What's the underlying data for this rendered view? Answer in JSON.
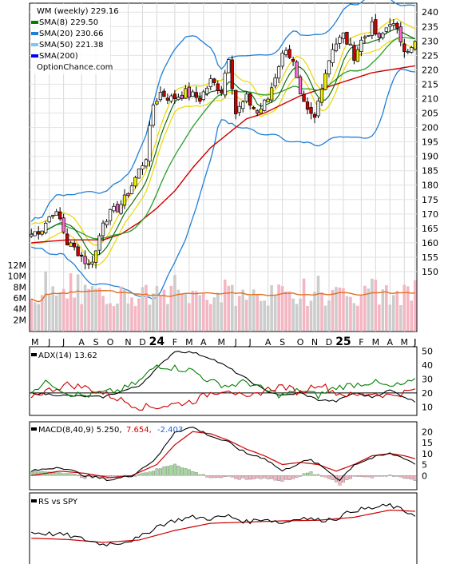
{
  "chart_data": [
    {
      "type": "candlestick",
      "panel": "price",
      "legend": [
        {
          "label": "WM (weekly) 229.16",
          "color": "#000000"
        },
        {
          "label": "SMA(8) 229.50",
          "color": "#008000"
        },
        {
          "label": "SMA(20) 230.66",
          "color": "#1e7fd8"
        },
        {
          "label": "SMA(50) 221.38",
          "color": "#7ec4ff"
        },
        {
          "label": "SMA(200)",
          "color": "#0000ff"
        }
      ],
      "watermark": "OptionChance.com",
      "ylim": [
        150,
        242
      ],
      "y_ticks": [
        150,
        155,
        160,
        165,
        170,
        175,
        180,
        185,
        190,
        195,
        200,
        205,
        210,
        215,
        220,
        225,
        230,
        235,
        240
      ],
      "close_anchors": [
        [
          0,
          163
        ],
        [
          3,
          165
        ],
        [
          6,
          171
        ],
        [
          8,
          168
        ],
        [
          10,
          160
        ],
        [
          13,
          157
        ],
        [
          16,
          152
        ],
        [
          18,
          157
        ],
        [
          20,
          168
        ],
        [
          24,
          172
        ],
        [
          26,
          175
        ],
        [
          28,
          180
        ],
        [
          30,
          185
        ],
        [
          32,
          190
        ],
        [
          34,
          208
        ],
        [
          36,
          212
        ],
        [
          39,
          210
        ],
        [
          43,
          212
        ],
        [
          47,
          210
        ],
        [
          50,
          216
        ],
        [
          53,
          213
        ],
        [
          55,
          225
        ],
        [
          57,
          205
        ],
        [
          60,
          210
        ],
        [
          63,
          205
        ],
        [
          66,
          210
        ],
        [
          69,
          222
        ],
        [
          71,
          228
        ],
        [
          73,
          222
        ],
        [
          75,
          210
        ],
        [
          77,
          205
        ],
        [
          79,
          203
        ],
        [
          81,
          215
        ],
        [
          84,
          228
        ],
        [
          87,
          232
        ],
        [
          90,
          225
        ],
        [
          92,
          230
        ],
        [
          95,
          235
        ],
        [
          97,
          230
        ],
        [
          100,
          237
        ],
        [
          102,
          233
        ],
        [
          104,
          228
        ],
        [
          106,
          227
        ],
        [
          107,
          229.16
        ]
      ],
      "sma50_anchors": [
        [
          0,
          160
        ],
        [
          10,
          161
        ],
        [
          20,
          161
        ],
        [
          25,
          163
        ],
        [
          30,
          167
        ],
        [
          35,
          172
        ],
        [
          40,
          178
        ],
        [
          45,
          186
        ],
        [
          50,
          193
        ],
        [
          55,
          198
        ],
        [
          60,
          203
        ],
        [
          65,
          205
        ],
        [
          70,
          208
        ],
        [
          75,
          211
        ],
        [
          80,
          213
        ],
        [
          85,
          215
        ],
        [
          90,
          217
        ],
        [
          95,
          219
        ],
        [
          100,
          220
        ],
        [
          107,
          221.38
        ]
      ],
      "volume": {
        "y_ticks": [
          "2M",
          "4M",
          "6M",
          "8M",
          "10M",
          "12M"
        ],
        "max": 12
      },
      "x_labels": [
        {
          "label": "M",
          "week": 1
        },
        {
          "label": "J",
          "week": 5
        },
        {
          "label": "J",
          "week": 9
        },
        {
          "label": "A",
          "week": 14
        },
        {
          "label": "S",
          "week": 18
        },
        {
          "label": "O",
          "week": 22
        },
        {
          "label": "N",
          "week": 27
        },
        {
          "label": "D",
          "week": 31
        },
        {
          "label": "24",
          "week": 35
        },
        {
          "label": "F",
          "week": 40
        },
        {
          "label": "M",
          "week": 44
        },
        {
          "label": "A",
          "week": 48
        },
        {
          "label": "M",
          "week": 53
        },
        {
          "label": "J",
          "week": 57
        },
        {
          "label": "J",
          "week": 61
        },
        {
          "label": "A",
          "week": 66
        },
        {
          "label": "S",
          "week": 70
        },
        {
          "label": "O",
          "week": 75
        },
        {
          "label": "N",
          "week": 79
        },
        {
          "label": "D",
          "week": 83
        },
        {
          "label": "25",
          "week": 87
        },
        {
          "label": "F",
          "week": 92
        },
        {
          "label": "M",
          "week": 96
        },
        {
          "label": "A",
          "week": 100
        },
        {
          "label": "M",
          "week": 104
        },
        {
          "label": "J",
          "week": 108
        },
        {
          "label": "J",
          "week": 112
        }
      ]
    },
    {
      "type": "line",
      "panel": "adx",
      "label": "ADX(14) 13.62",
      "ylim": [
        5,
        52
      ],
      "y_ticks": [
        10,
        20,
        30,
        40,
        50
      ],
      "ref_line": 20,
      "series": [
        {
          "color": "#000000",
          "values": [
            [
              0,
              20
            ],
            [
              10,
              18
            ],
            [
              20,
              17
            ],
            [
              30,
              25
            ],
            [
              36,
              40
            ],
            [
              40,
              50
            ],
            [
              45,
              49
            ],
            [
              50,
              45
            ],
            [
              55,
              38
            ],
            [
              60,
              30
            ],
            [
              65,
              22
            ],
            [
              70,
              18
            ],
            [
              75,
              20
            ],
            [
              80,
              15
            ],
            [
              85,
              14
            ],
            [
              90,
              20
            ],
            [
              95,
              17
            ],
            [
              100,
              22
            ],
            [
              107,
              13.62
            ]
          ]
        },
        {
          "color": "#008000",
          "values": [
            [
              0,
              22
            ],
            [
              5,
              28
            ],
            [
              10,
              20
            ],
            [
              15,
              18
            ],
            [
              20,
              20
            ],
            [
              25,
              22
            ],
            [
              30,
              28
            ],
            [
              35,
              40
            ],
            [
              40,
              38
            ],
            [
              45,
              36
            ],
            [
              50,
              28
            ],
            [
              55,
              25
            ],
            [
              60,
              28
            ],
            [
              65,
              22
            ],
            [
              70,
              18
            ],
            [
              75,
              22
            ],
            [
              80,
              18
            ],
            [
              85,
              24
            ],
            [
              90,
              26
            ],
            [
              95,
              28
            ],
            [
              100,
              24
            ],
            [
              107,
              28
            ]
          ]
        },
        {
          "color": "#cc0000",
          "values": [
            [
              0,
              18
            ],
            [
              5,
              22
            ],
            [
              10,
              26
            ],
            [
              15,
              24
            ],
            [
              20,
              20
            ],
            [
              25,
              15
            ],
            [
              30,
              10
            ],
            [
              35,
              10
            ],
            [
              40,
              12
            ],
            [
              45,
              14
            ],
            [
              50,
              20
            ],
            [
              55,
              23
            ],
            [
              60,
              15
            ],
            [
              65,
              22
            ],
            [
              70,
              25
            ],
            [
              75,
              20
            ],
            [
              80,
              27
            ],
            [
              85,
              20
            ],
            [
              90,
              18
            ],
            [
              95,
              20
            ],
            [
              100,
              18
            ],
            [
              107,
              22
            ]
          ]
        }
      ]
    },
    {
      "type": "bar+line",
      "panel": "macd",
      "label": "MACD(8,40,9) 5.250,",
      "value_signal": "7.654,",
      "value_hist": "-2.403",
      "signal_color": "#cc0000",
      "hist_color": "#1e5fcc",
      "ylim": [
        -5,
        23
      ],
      "y_ticks": [
        0,
        5,
        10,
        15,
        20
      ],
      "macd": [
        [
          0,
          2
        ],
        [
          8,
          4
        ],
        [
          15,
          0
        ],
        [
          22,
          -2
        ],
        [
          28,
          0
        ],
        [
          35,
          8
        ],
        [
          40,
          20
        ],
        [
          45,
          22
        ],
        [
          50,
          18
        ],
        [
          55,
          15
        ],
        [
          60,
          10
        ],
        [
          65,
          8
        ],
        [
          70,
          2
        ],
        [
          75,
          6
        ],
        [
          78,
          7
        ],
        [
          82,
          3
        ],
        [
          86,
          -2
        ],
        [
          90,
          5
        ],
        [
          95,
          8
        ],
        [
          100,
          10
        ],
        [
          104,
          8
        ],
        [
          107,
          5.25
        ]
      ],
      "signal": [
        [
          0,
          0
        ],
        [
          8,
          2
        ],
        [
          15,
          1
        ],
        [
          22,
          -1
        ],
        [
          28,
          0
        ],
        [
          35,
          5
        ],
        [
          40,
          14
        ],
        [
          45,
          20
        ],
        [
          50,
          19
        ],
        [
          55,
          16
        ],
        [
          60,
          12
        ],
        [
          65,
          9
        ],
        [
          70,
          5
        ],
        [
          75,
          6
        ],
        [
          80,
          5
        ],
        [
          85,
          2
        ],
        [
          90,
          5
        ],
        [
          95,
          9
        ],
        [
          100,
          10
        ],
        [
          104,
          9
        ],
        [
          107,
          7.654
        ]
      ]
    },
    {
      "type": "line",
      "panel": "rs",
      "label": "RS vs SPY",
      "rs": [
        [
          0,
          0.45
        ],
        [
          10,
          0.4
        ],
        [
          20,
          0.25
        ],
        [
          25,
          0.28
        ],
        [
          30,
          0.35
        ],
        [
          35,
          0.55
        ],
        [
          40,
          0.65
        ],
        [
          45,
          0.7
        ],
        [
          50,
          0.68
        ],
        [
          55,
          0.72
        ],
        [
          60,
          0.62
        ],
        [
          65,
          0.68
        ],
        [
          70,
          0.6
        ],
        [
          75,
          0.7
        ],
        [
          80,
          0.65
        ],
        [
          85,
          0.68
        ],
        [
          90,
          0.82
        ],
        [
          95,
          0.85
        ],
        [
          100,
          0.9
        ],
        [
          104,
          0.8
        ],
        [
          107,
          0.75
        ]
      ],
      "rs_ma": [
        [
          0,
          0.35
        ],
        [
          10,
          0.33
        ],
        [
          20,
          0.28
        ],
        [
          30,
          0.32
        ],
        [
          40,
          0.48
        ],
        [
          50,
          0.6
        ],
        [
          60,
          0.62
        ],
        [
          70,
          0.64
        ],
        [
          80,
          0.65
        ],
        [
          90,
          0.7
        ],
        [
          100,
          0.82
        ],
        [
          107,
          0.8
        ]
      ]
    }
  ]
}
